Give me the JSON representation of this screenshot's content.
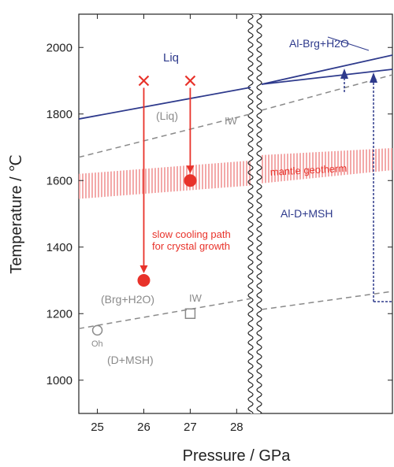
{
  "chart_data": {
    "type": "scatter",
    "xlabel": "Pressure / GPa",
    "ylabel": "Temperature / ℃",
    "xlim": [
      24.6,
      28.3
    ],
    "ylim": [
      900,
      2100
    ],
    "x_ticks": [
      "25",
      "26",
      "27",
      "28"
    ],
    "y_ticks": [
      "1000",
      "1200",
      "1400",
      "1600",
      "1800",
      "2000"
    ],
    "axis_break": "pressure axis broken after 28 GPa",
    "grid": false,
    "colors": {
      "primary": "#2e3a8c",
      "experiment": "#e8322a",
      "secondary": "#8a8a8a"
    },
    "region_labels": {
      "liq": "Liq",
      "liq_paren": "(Liq)",
      "iw_upper": "IW",
      "brg": "(Brg+H2O)",
      "iw_lower": "IW",
      "oh": "Oh",
      "dmsh": "(D+MSH)",
      "albrg": "Al-Brg+H2O",
      "ald": "Al-D+MSH",
      "geotherm": "mantle geotherm",
      "cooling": [
        "slow cooling path",
        "for crystal growth"
      ]
    },
    "series": [
      {
        "name": "start",
        "marker": "x",
        "points": [
          [
            26,
            1900
          ],
          [
            27,
            1900
          ]
        ]
      },
      {
        "name": "end",
        "marker": "circle",
        "points": [
          [
            26,
            1300
          ],
          [
            27,
            1600
          ]
        ]
      }
    ],
    "lines": {
      "liquidus": [
        [
          24.6,
          1785
        ],
        [
          28.3,
          1880
        ]
      ],
      "iw_upper": [
        [
          24.6,
          1670
        ],
        [
          28.3,
          1800
        ]
      ],
      "iw_lower": [
        [
          24.6,
          1155
        ],
        [
          28.3,
          1245
        ]
      ],
      "geotherm_band": {
        "lower": [
          [
            24.6,
            1545
          ],
          [
            28.3,
            1585
          ]
        ],
        "upper": [
          [
            24.6,
            1620
          ],
          [
            28.3,
            1660
          ]
        ]
      }
    },
    "markers": {
      "iw_square": [
        27,
        1200
      ],
      "oh_circle": [
        25,
        1150
      ]
    }
  }
}
